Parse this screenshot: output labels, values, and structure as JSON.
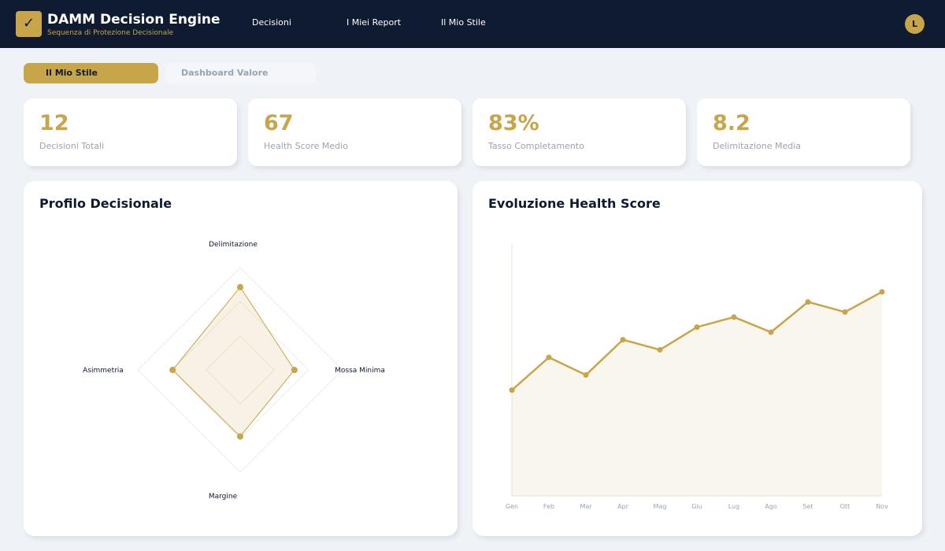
{
  "header": {
    "logo_glyph": "✓",
    "title": "DAMM Decision Engine",
    "subtitle": "Sequenza di Protezione Decisionale",
    "nav": [
      {
        "label": "Decisioni"
      },
      {
        "label": "I Miei Report"
      },
      {
        "label": "Il Mio Stile"
      }
    ],
    "avatar_initial": "L"
  },
  "tabs": [
    {
      "label": "Il Mio Stile",
      "active": true
    },
    {
      "label": "Dashboard Valore",
      "active": false
    }
  ],
  "stats": [
    {
      "value": "12",
      "label": "Decisioni Totali"
    },
    {
      "value": "67",
      "label": "Health Score Medio"
    },
    {
      "value": "83%",
      "label": "Tasso Completamento"
    },
    {
      "value": "8.2",
      "label": "Delimitazione Media"
    }
  ],
  "colors": {
    "accent": "#c9a54a",
    "navy": "#0f1b30",
    "background": "#eff2f7",
    "muted": "#9aa3b0"
  },
  "radar": {
    "title": "Profilo Decisionale",
    "axes": [
      "Delimitazione",
      "Mossa Minima",
      "Margine",
      "Asimmetria"
    ]
  },
  "chart_data": [
    {
      "type": "radar",
      "axes": [
        "Delimitazione",
        "Mossa Minima",
        "Margine",
        "Asimmetria"
      ],
      "values": [
        0.81,
        0.53,
        0.65,
        0.66
      ],
      "max": 1,
      "grid_levels": 3
    },
    {
      "type": "area",
      "title": "Evoluzione Health Score",
      "categories": [
        "Gen",
        "Feb",
        "Mar",
        "Apr",
        "Mag",
        "Giu",
        "Lug",
        "Ago",
        "Set",
        "Ott",
        "Nov"
      ],
      "values": [
        42,
        55,
        48,
        62,
        58,
        67,
        71,
        65,
        77,
        73,
        81
      ],
      "ylim": [
        0,
        100
      ],
      "grid": false
    }
  ]
}
